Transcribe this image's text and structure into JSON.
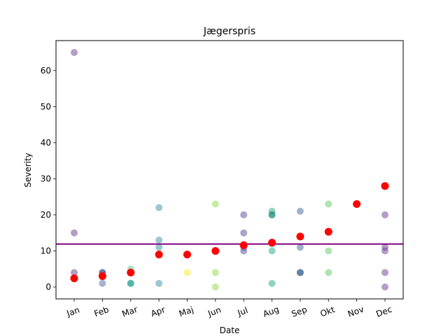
{
  "chart_data": {
    "type": "scatter",
    "title": "Jægerspris",
    "xlabel": "Date",
    "ylabel": "Severity",
    "categories": [
      "Jan",
      "Feb",
      "Mar",
      "Apr",
      "Maj",
      "Jun",
      "Jul",
      "Aug",
      "Sep",
      "Okt",
      "Nov",
      "Dec"
    ],
    "ylim": [
      -3.3,
      68.3
    ],
    "yticks": [
      0,
      10,
      20,
      30,
      40,
      50,
      60
    ],
    "grid": false,
    "scatter_points": [
      {
        "month": "Jan",
        "y": 65,
        "color": "#6a3d8f"
      },
      {
        "month": "Jan",
        "y": 15,
        "color": "#6a3d8f"
      },
      {
        "month": "Jan",
        "y": 4,
        "color": "#6a3d8f"
      },
      {
        "month": "Feb",
        "y": 4,
        "color": "#3b4f8a"
      },
      {
        "month": "Feb",
        "y": 4,
        "color": "#3b4f8a"
      },
      {
        "month": "Feb",
        "y": 1,
        "color": "#5068a0"
      },
      {
        "month": "Mar",
        "y": 5,
        "color": "#5ec98a"
      },
      {
        "month": "Mar",
        "y": 1,
        "color": "#1f9e89"
      },
      {
        "month": "Mar",
        "y": 1,
        "color": "#1f9e89"
      },
      {
        "month": "Apr",
        "y": 22,
        "color": "#3a8fa0"
      },
      {
        "month": "Apr",
        "y": 13,
        "color": "#3a8fa0"
      },
      {
        "month": "Apr",
        "y": 11,
        "color": "#3a8fa0"
      },
      {
        "month": "Apr",
        "y": 1,
        "color": "#3a8fa0"
      },
      {
        "month": "Maj",
        "y": 4,
        "color": "#fde725"
      },
      {
        "month": "Jun",
        "y": 23,
        "color": "#90d743"
      },
      {
        "month": "Jun",
        "y": 4,
        "color": "#90d743"
      },
      {
        "month": "Jun",
        "y": 0,
        "color": "#90d743"
      },
      {
        "month": "Jul",
        "y": 20,
        "color": "#5a4a9a"
      },
      {
        "month": "Jul",
        "y": 15,
        "color": "#5a4a9a"
      },
      {
        "month": "Jul",
        "y": 11,
        "color": "#5a4a9a"
      },
      {
        "month": "Jul",
        "y": 10,
        "color": "#5a4a9a"
      },
      {
        "month": "Aug",
        "y": 21,
        "color": "#22a884"
      },
      {
        "month": "Aug",
        "y": 20,
        "color": "#1a8a7a"
      },
      {
        "month": "Aug",
        "y": 20,
        "color": "#1a8a7a"
      },
      {
        "month": "Aug",
        "y": 12,
        "color": "#22a884"
      },
      {
        "month": "Aug",
        "y": 10,
        "color": "#22a884"
      },
      {
        "month": "Aug",
        "y": 1,
        "color": "#22a884"
      },
      {
        "month": "Sep",
        "y": 21,
        "color": "#3b6a94"
      },
      {
        "month": "Sep",
        "y": 11,
        "color": "#3b6a94"
      },
      {
        "month": "Sep",
        "y": 4,
        "color": "#2c5a86"
      },
      {
        "month": "Sep",
        "y": 4,
        "color": "#2c5a86"
      },
      {
        "month": "Okt",
        "y": 23,
        "color": "#5ec962"
      },
      {
        "month": "Okt",
        "y": 10,
        "color": "#5ec962"
      },
      {
        "month": "Okt",
        "y": 4,
        "color": "#5ec962"
      },
      {
        "month": "Dec",
        "y": 20,
        "color": "#6a3d8f"
      },
      {
        "month": "Dec",
        "y": 11,
        "color": "#6a3d8f"
      },
      {
        "month": "Dec",
        "y": 10,
        "color": "#6a3d8f"
      },
      {
        "month": "Dec",
        "y": 4,
        "color": "#6a3d8f"
      },
      {
        "month": "Dec",
        "y": 0,
        "color": "#6a3d8f"
      }
    ],
    "mean_points": {
      "color": "#ff0000",
      "values": [
        {
          "month": "Jan",
          "y": 2.4
        },
        {
          "month": "Feb",
          "y": 3.0
        },
        {
          "month": "Mar",
          "y": 4.0
        },
        {
          "month": "Apr",
          "y": 9.0
        },
        {
          "month": "Maj",
          "y": 9.0
        },
        {
          "month": "Jun",
          "y": 10.0
        },
        {
          "month": "Jul",
          "y": 11.6
        },
        {
          "month": "Aug",
          "y": 12.3
        },
        {
          "month": "Sep",
          "y": 14.0
        },
        {
          "month": "Okt",
          "y": 15.3
        },
        {
          "month": "Nov",
          "y": 23.0
        },
        {
          "month": "Dec",
          "y": 28.0
        }
      ]
    },
    "reference_line": {
      "y": 11.9,
      "color": "#800080"
    }
  }
}
